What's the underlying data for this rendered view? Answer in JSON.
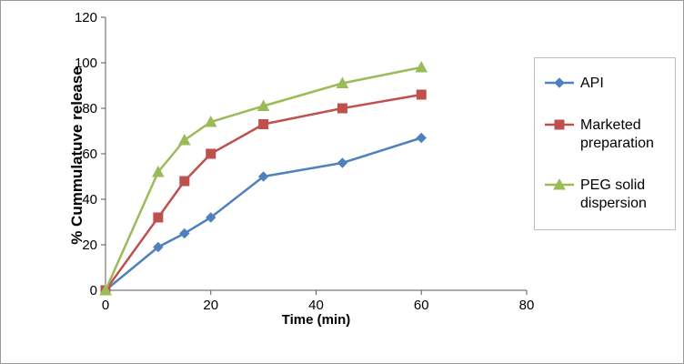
{
  "figure": {
    "y_axis_title": "% Cummulatuve release",
    "x_axis_title": "Time (min)"
  },
  "chart_data": {
    "type": "line",
    "title": "",
    "xlabel": "Time (min)",
    "ylabel": "% Cummulatuve release",
    "xlim": [
      0,
      80
    ],
    "ylim": [
      0,
      120
    ],
    "x_ticks": [
      0,
      20,
      40,
      60,
      80
    ],
    "y_ticks": [
      0,
      20,
      40,
      60,
      80,
      100,
      120
    ],
    "grid": false,
    "legend_position": "right",
    "x": [
      0,
      10,
      15,
      20,
      30,
      45,
      60
    ],
    "series": [
      {
        "name": "API",
        "marker": "diamond",
        "color": "#4F81BD",
        "values": [
          0,
          19,
          25,
          32,
          50,
          56,
          67
        ]
      },
      {
        "name": "Marketed preparation",
        "marker": "square",
        "color": "#C0504D",
        "values": [
          0,
          32,
          48,
          60,
          73,
          80,
          86
        ]
      },
      {
        "name": "PEG solid dispersion",
        "marker": "triangle",
        "color": "#9BBB59",
        "values": [
          0,
          52,
          66,
          74,
          81,
          91,
          98
        ]
      }
    ]
  }
}
